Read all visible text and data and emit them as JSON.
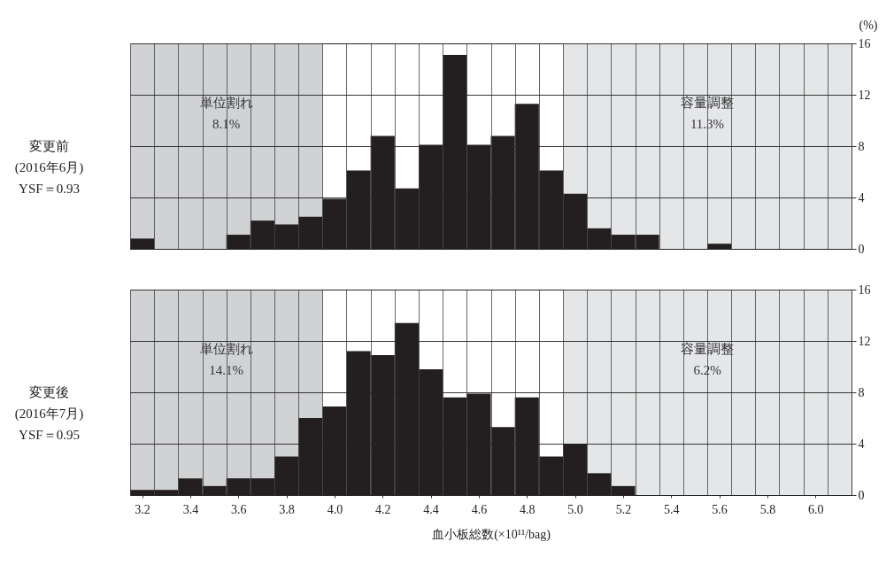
{
  "chart_data": [
    {
      "type": "histogram",
      "title": "変更前\n(2016年6月)\nYSF＝0.93",
      "ylabel": "(%)",
      "color": "#231f20",
      "bins": [
        3.15,
        3.25,
        3.35,
        3.45,
        3.55,
        3.65,
        3.75,
        3.85,
        3.95,
        4.05,
        4.15,
        4.25,
        4.35,
        4.45,
        4.55,
        4.65,
        4.75,
        4.85,
        4.95,
        5.05,
        5.15,
        5.25,
        5.35,
        5.45,
        5.55,
        5.65,
        5.75,
        5.85,
        5.95,
        6.05,
        6.15
      ],
      "values": [
        0.8,
        0,
        0,
        0,
        1.1,
        2.2,
        1.9,
        2.5,
        3.9,
        6.1,
        8.8,
        4.7,
        8.1,
        15.1,
        8.1,
        8.8,
        11.3,
        6.1,
        4.3,
        1.6,
        1.1,
        1.1,
        0,
        0,
        0.4,
        0,
        0,
        0,
        0,
        0
      ],
      "xlim": [
        3.15,
        6.15
      ],
      "ylim": [
        0,
        16
      ],
      "yticks": [
        0,
        4,
        8,
        12,
        16
      ],
      "grid": true,
      "tick_labels": "y",
      "bands": [
        {
          "axis": "x",
          "from": 3.15,
          "to": 3.95,
          "label": "単位割れ\n8.1%",
          "color": "#d1d2d4"
        },
        {
          "axis": "x",
          "from": 4.95,
          "to": 6.15,
          "label": "容量調整\n11.3%",
          "color": "#e5e6e8"
        }
      ]
    },
    {
      "type": "histogram",
      "title": "変更後\n(2016年7月)\nYSF＝0.95",
      "xlabel": "血小板総数(×10¹¹/bag)",
      "color": "#231f20",
      "bins": [
        3.15,
        3.25,
        3.35,
        3.45,
        3.55,
        3.65,
        3.75,
        3.85,
        3.95,
        4.05,
        4.15,
        4.25,
        4.35,
        4.45,
        4.55,
        4.65,
        4.75,
        4.85,
        4.95,
        5.05,
        5.15,
        5.25,
        5.35,
        5.45,
        5.55,
        5.65,
        5.75,
        5.85,
        5.95,
        6.05,
        6.15
      ],
      "values": [
        0.4,
        0.4,
        1.3,
        0.7,
        1.3,
        1.3,
        3.0,
        6.0,
        6.9,
        11.2,
        10.9,
        13.4,
        9.8,
        7.6,
        7.9,
        5.3,
        7.6,
        3.0,
        4.0,
        1.7,
        0.7,
        0,
        0,
        0,
        0,
        0,
        0,
        0,
        0,
        0
      ],
      "xlim": [
        3.15,
        6.15
      ],
      "xticks": [
        3.2,
        3.4,
        3.6,
        3.8,
        {
          "value": 4,
          "label": "4.0"
        },
        4.2,
        4.4,
        4.6,
        4.8,
        {
          "value": 5,
          "label": "5.0"
        },
        5.2,
        5.4,
        5.6,
        5.8,
        {
          "value": 6,
          "label": "6.0"
        }
      ],
      "ylim": [
        0,
        16
      ],
      "yticks": [
        0,
        4,
        8,
        12,
        16
      ],
      "grid": true,
      "bands": [
        {
          "axis": "x",
          "from": 3.15,
          "to": 3.95,
          "label": "単位割れ\n14.1%",
          "color": "#d1d2d4"
        },
        {
          "axis": "x",
          "from": 4.95,
          "to": 6.15,
          "label": "容量調整\n6.2%",
          "color": "#e5e6e8"
        }
      ]
    }
  ]
}
